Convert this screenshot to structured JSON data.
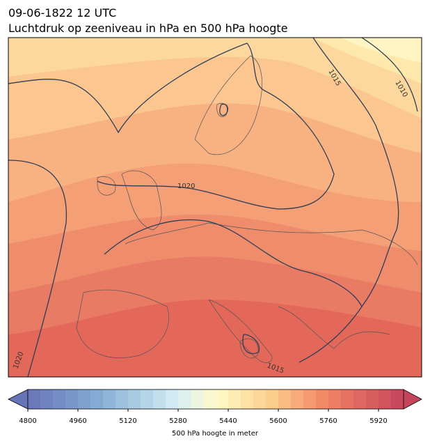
{
  "title": "09-06-1822 12 UTC",
  "subtitle": "Luchtdruk op zeeniveau in hPa en 500 hPa hoogte",
  "contour_labels": [
    "1015",
    "1010",
    "1020",
    "1020",
    "1015"
  ],
  "colorbar": {
    "label": "500 hPa hoogte in meter",
    "range": [
      4800,
      6000
    ],
    "ticks": [
      4800,
      4960,
      5120,
      5280,
      5440,
      5600,
      5760,
      5920
    ]
  }
}
